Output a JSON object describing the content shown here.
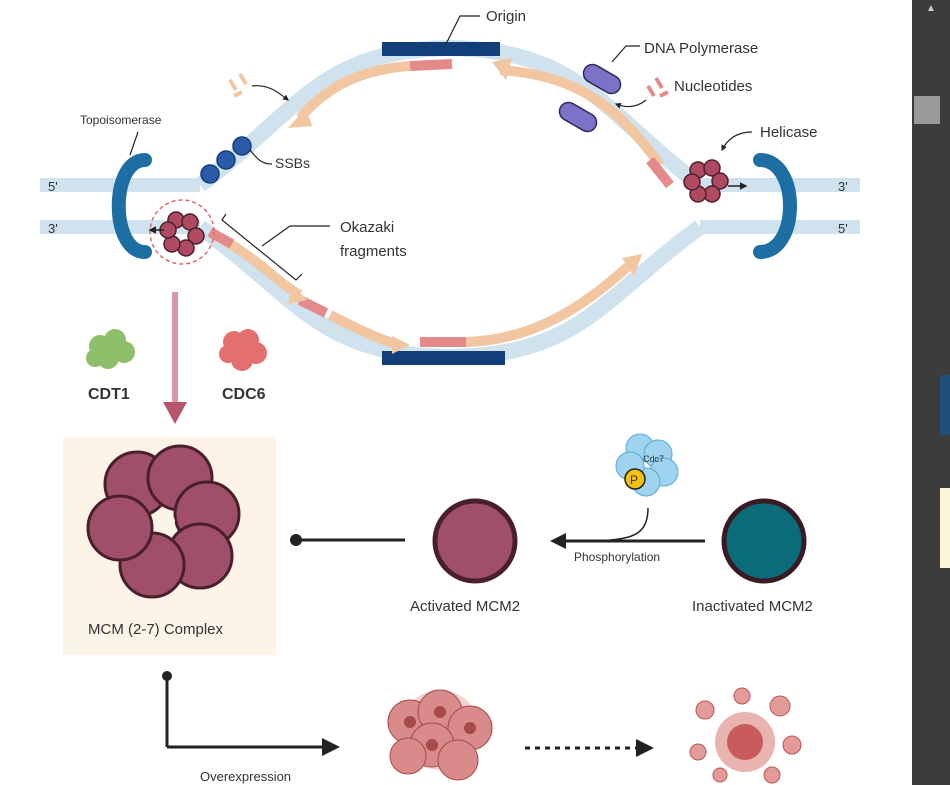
{
  "labels": {
    "origin": "Origin",
    "dna_polymerase": "DNA Polymerase",
    "nucleotides": "Nucleotides",
    "topoisomerase": "Topoisomerase",
    "helicase": "Helicase",
    "ssbs": "SSBs",
    "okazaki_line1": "Okazaki",
    "okazaki_line2": "fragments",
    "five_prime": "5'",
    "three_prime": "3'",
    "cdt1": "CDT1",
    "cdc6": "CDC6",
    "cdc7": "Cdc7",
    "phospho_p": "P",
    "phosphorylation": "Phosphorylation",
    "mcm_complex": "MCM (2-7) Complex",
    "activated_mcm2": "Activated MCM2",
    "inactivated_mcm2": "Inactivated MCM2",
    "overexpression": "Overexpression"
  },
  "colors": {
    "strand": "#cfe2ee",
    "new_strand": "#f2c6a0",
    "primer": "#e58a8a",
    "origin": "#123f7a",
    "topoisomerase": "#1d6fa3",
    "ssb": "#2a5aa8",
    "helicase": "#b04a63",
    "polymerase": "#7c73c8",
    "mcm": "#a04f6b",
    "mcm_outline": "#4a1f2c",
    "inactive_mcm": "#0b6b78",
    "cdt1": "#8fbf6a",
    "cdc6": "#e46f6f",
    "cdc7": "#9fd3ee",
    "phospho": "#f4c20d",
    "arrow_down": "#b5566d",
    "cell": "#d98a8a"
  }
}
